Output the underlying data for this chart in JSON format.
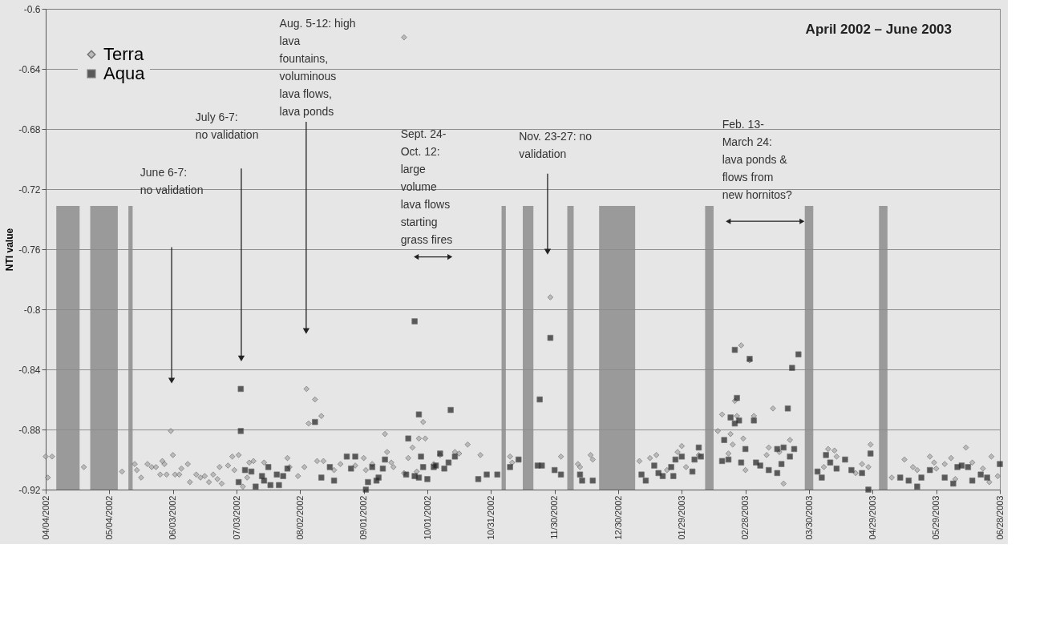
{
  "chart_data": {
    "type": "scatter",
    "title": "April 2002 – June 2003",
    "ylabel": "NTI value",
    "xlim": [
      "2002-04-04",
      "2003-06-28"
    ],
    "xticks": [
      {
        "value": "2002-04-04",
        "label": "04/04/2002"
      },
      {
        "value": "2002-05-04",
        "label": "05/04/2002"
      },
      {
        "value": "2002-06-03",
        "label": "06/03/2002"
      },
      {
        "value": "2002-07-03",
        "label": "07/03/2002"
      },
      {
        "value": "2002-08-02",
        "label": "08/02/2002"
      },
      {
        "value": "2002-09-01",
        "label": "09/01/2002"
      },
      {
        "value": "2002-10-01",
        "label": "10/01/2002"
      },
      {
        "value": "2002-10-31",
        "label": "10/31/2002"
      },
      {
        "value": "2002-11-30",
        "label": "11/30/2002"
      },
      {
        "value": "2002-12-30",
        "label": "12/30/2002"
      },
      {
        "value": "2003-01-29",
        "label": "01/29/2003"
      },
      {
        "value": "2003-02-28",
        "label": "02/28/2003"
      },
      {
        "value": "2003-03-30",
        "label": "03/30/2003"
      },
      {
        "value": "2003-04-29",
        "label": "04/29/2003"
      },
      {
        "value": "2003-05-29",
        "label": "05/29/2003"
      },
      {
        "value": "2003-06-28",
        "label": "06/28/2003"
      }
    ],
    "ylim": [
      -0.92,
      -0.6
    ],
    "yticks": [
      -0.92,
      -0.88,
      -0.84,
      -0.8,
      -0.76,
      -0.72,
      -0.68,
      -0.64,
      -0.6
    ],
    "grid": "y",
    "legend": "top left",
    "series": [
      {
        "name": "Terra",
        "color": "#a8a8a8",
        "marker": "diamond",
        "x": [
          "2002-04-04",
          "2002-04-07",
          "2002-04-05",
          "2002-04-22",
          "2002-05-10",
          "2002-05-16",
          "2002-05-17",
          "2002-05-19",
          "2002-05-22",
          "2002-05-24",
          "2002-05-26",
          "2002-05-28",
          "2002-05-29",
          "2002-05-30",
          "2002-05-31",
          "2002-06-02",
          "2002-06-03",
          "2002-06-04",
          "2002-06-06",
          "2002-06-07",
          "2002-06-10",
          "2002-06-11",
          "2002-06-14",
          "2002-06-16",
          "2002-06-18",
          "2002-06-20",
          "2002-06-22",
          "2002-06-24",
          "2002-06-25",
          "2002-06-26",
          "2002-06-29",
          "2002-07-01",
          "2002-07-02",
          "2002-07-04",
          "2002-07-06",
          "2002-07-08",
          "2002-07-09",
          "2002-07-11",
          "2002-07-16",
          "2002-07-27",
          "2002-07-28",
          "2002-08-01",
          "2002-08-04",
          "2002-08-05",
          "2002-08-06",
          "2002-08-09",
          "2002-08-12",
          "2002-08-10",
          "2002-08-13",
          "2002-08-18",
          "2002-08-21",
          "2002-08-28",
          "2002-09-01",
          "2002-09-02",
          "2002-09-05",
          "2002-09-11",
          "2002-09-12",
          "2002-09-14",
          "2002-09-15",
          "2002-09-20",
          "2002-09-20",
          "2002-09-22",
          "2002-09-24",
          "2002-09-26",
          "2002-09-27",
          "2002-09-29",
          "2002-09-30",
          "2002-10-04",
          "2002-10-07",
          "2002-10-14",
          "2002-10-16",
          "2002-10-20",
          "2002-10-26",
          "2002-11-09",
          "2002-11-10",
          "2002-11-28",
          "2002-12-03",
          "2002-12-11",
          "2002-12-12",
          "2002-12-17",
          "2002-12-18",
          "2003-01-09",
          "2003-01-14",
          "2003-01-17",
          "2003-01-22",
          "2003-01-27",
          "2003-01-29",
          "2003-01-31",
          "2003-02-06",
          "2003-02-15",
          "2003-02-17",
          "2003-02-21",
          "2003-02-22",
          "2003-02-20",
          "2003-02-23",
          "2003-02-24",
          "2003-02-26",
          "2003-02-27",
          "2003-02-28",
          "2003-03-02",
          "2003-03-04",
          "2003-03-10",
          "2003-03-11",
          "2003-03-13",
          "2003-03-16",
          "2003-03-18",
          "2003-03-21",
          "2003-04-06",
          "2003-04-08",
          "2003-04-11",
          "2003-04-12",
          "2003-04-21",
          "2003-04-24",
          "2003-04-27",
          "2003-04-28",
          "2003-05-08",
          "2003-05-14",
          "2003-05-18",
          "2003-05-20",
          "2003-05-26",
          "2003-05-28",
          "2003-05-29",
          "2003-06-02",
          "2003-06-05",
          "2003-06-07",
          "2003-06-12",
          "2003-06-15",
          "2003-06-20",
          "2003-06-23",
          "2003-06-24",
          "2003-06-27"
        ],
        "values": [
          -0.898,
          -0.898,
          -0.912,
          -0.905,
          -0.908,
          -0.903,
          -0.907,
          -0.912,
          -0.903,
          -0.905,
          -0.905,
          -0.91,
          -0.901,
          -0.903,
          -0.91,
          -0.881,
          -0.897,
          -0.91,
          -0.91,
          -0.906,
          -0.903,
          -0.915,
          -0.91,
          -0.912,
          -0.911,
          -0.915,
          -0.91,
          -0.913,
          -0.905,
          -0.916,
          -0.904,
          -0.898,
          -0.907,
          -0.897,
          -0.918,
          -0.912,
          -0.902,
          -0.901,
          -0.902,
          -0.899,
          -0.905,
          -0.911,
          -0.905,
          -0.853,
          -0.876,
          -0.86,
          -0.871,
          -0.901,
          -0.901,
          -0.907,
          -0.903,
          -0.904,
          -0.899,
          -0.907,
          -0.903,
          -0.883,
          -0.895,
          -0.902,
          -0.905,
          -0.909,
          -0.619,
          -0.899,
          -0.892,
          -0.908,
          -0.886,
          -0.875,
          -0.886,
          -0.903,
          -0.897,
          -0.895,
          -0.896,
          -0.89,
          -0.897,
          -0.898,
          -0.902,
          -0.792,
          -0.898,
          -0.903,
          -0.905,
          -0.897,
          -0.9,
          -0.901,
          -0.899,
          -0.897,
          -0.907,
          -0.895,
          -0.891,
          -0.905,
          -0.897,
          -0.881,
          -0.87,
          -0.883,
          -0.89,
          -0.896,
          -0.861,
          -0.871,
          -0.824,
          -0.886,
          -0.907,
          -0.834,
          -0.871,
          -0.897,
          -0.892,
          -0.866,
          -0.895,
          -0.916,
          -0.887,
          -0.905,
          -0.893,
          -0.894,
          -0.898,
          -0.909,
          -0.903,
          -0.905,
          -0.89,
          -0.912,
          -0.9,
          -0.905,
          -0.907,
          -0.898,
          -0.902,
          -0.906,
          -0.903,
          -0.899,
          -0.913,
          -0.892,
          -0.902,
          -0.906,
          -0.915,
          -0.898,
          -0.911
        ]
      },
      {
        "name": "Aqua",
        "color": "#1e1e1e",
        "marker": "square",
        "x": [
          "2002-07-05",
          "2002-07-05",
          "2002-07-04",
          "2002-07-07",
          "2002-07-10",
          "2002-07-12",
          "2002-07-15",
          "2002-07-16",
          "2002-07-18",
          "2002-07-19",
          "2002-07-22",
          "2002-07-23",
          "2002-07-25",
          "2002-07-27",
          "2002-08-09",
          "2002-08-12",
          "2002-08-16",
          "2002-08-18",
          "2002-08-24",
          "2002-08-26",
          "2002-08-28",
          "2002-09-02",
          "2002-09-03",
          "2002-09-05",
          "2002-09-07",
          "2002-09-08",
          "2002-09-10",
          "2002-09-11",
          "2002-09-21",
          "2002-09-22",
          "2002-09-25",
          "2002-09-25",
          "2002-09-27",
          "2002-09-27",
          "2002-09-28",
          "2002-09-29",
          "2002-10-01",
          "2002-10-04",
          "2002-10-05",
          "2002-10-07",
          "2002-10-09",
          "2002-10-11",
          "2002-10-12",
          "2002-10-14",
          "2002-10-25",
          "2002-10-29",
          "2002-11-03",
          "2002-11-09",
          "2002-11-13",
          "2002-11-22",
          "2002-11-23",
          "2002-11-24",
          "2002-11-28",
          "2002-11-30",
          "2002-12-03",
          "2002-12-12",
          "2002-12-13",
          "2002-12-18",
          "2003-01-10",
          "2003-01-12",
          "2003-01-16",
          "2003-01-18",
          "2003-01-20",
          "2003-01-24",
          "2003-01-25",
          "2003-01-26",
          "2003-01-29",
          "2003-02-03",
          "2003-02-04",
          "2003-02-06",
          "2003-02-07",
          "2003-02-17",
          "2003-02-18",
          "2003-02-20",
          "2003-02-21",
          "2003-02-23",
          "2003-02-23",
          "2003-02-24",
          "2003-02-25",
          "2003-02-26",
          "2003-02-28",
          "2003-03-02",
          "2003-03-04",
          "2003-03-05",
          "2003-03-07",
          "2003-03-11",
          "2003-03-15",
          "2003-03-15",
          "2003-03-17",
          "2003-03-18",
          "2003-03-20",
          "2003-03-21",
          "2003-03-22",
          "2003-03-23",
          "2003-03-25",
          "2003-04-03",
          "2003-04-05",
          "2003-04-07",
          "2003-04-09",
          "2003-04-12",
          "2003-04-16",
          "2003-04-19",
          "2003-04-24",
          "2003-04-27",
          "2003-04-28",
          "2003-05-12",
          "2003-05-16",
          "2003-05-20",
          "2003-05-22",
          "2003-05-26",
          "2003-06-02",
          "2003-06-06",
          "2003-06-08",
          "2003-06-10",
          "2003-06-13",
          "2003-06-15",
          "2003-06-19",
          "2003-06-22",
          "2003-06-28"
        ],
        "values": [
          -0.853,
          -0.881,
          -0.915,
          -0.907,
          -0.908,
          -0.918,
          -0.911,
          -0.914,
          -0.905,
          -0.917,
          -0.91,
          -0.917,
          -0.911,
          -0.906,
          -0.875,
          -0.912,
          -0.905,
          -0.914,
          -0.898,
          -0.906,
          -0.898,
          -0.92,
          -0.915,
          -0.905,
          -0.914,
          -0.912,
          -0.906,
          -0.9,
          -0.91,
          -0.886,
          -0.808,
          -0.911,
          -0.87,
          -0.912,
          -0.898,
          -0.905,
          -0.913,
          -0.905,
          -0.904,
          -0.896,
          -0.906,
          -0.902,
          -0.867,
          -0.898,
          -0.913,
          -0.91,
          -0.91,
          -0.905,
          -0.9,
          -0.904,
          -0.86,
          -0.904,
          -0.819,
          -0.907,
          -0.91,
          -0.91,
          -0.914,
          -0.914,
          -0.91,
          -0.914,
          -0.904,
          -0.909,
          -0.911,
          -0.905,
          -0.911,
          -0.9,
          -0.898,
          -0.908,
          -0.9,
          -0.892,
          -0.898,
          -0.901,
          -0.887,
          -0.9,
          -0.872,
          -0.876,
          -0.827,
          -0.859,
          -0.874,
          -0.902,
          -0.893,
          -0.833,
          -0.874,
          -0.902,
          -0.904,
          -0.907,
          -0.893,
          -0.909,
          -0.903,
          -0.892,
          -0.866,
          -0.898,
          -0.839,
          -0.893,
          -0.83,
          -0.908,
          -0.912,
          -0.897,
          -0.902,
          -0.906,
          -0.9,
          -0.907,
          -0.909,
          -0.92,
          -0.896,
          -0.912,
          -0.914,
          -0.918,
          -0.912,
          -0.907,
          -0.912,
          -0.916,
          -0.905,
          -0.904,
          -0.905,
          -0.914,
          -0.91,
          -0.912,
          -0.903
        ]
      }
    ],
    "bands": [
      {
        "axis": "x",
        "from": "2002-04-09",
        "to": "2002-04-20",
        "color": "#8c8c8c"
      },
      {
        "axis": "x",
        "from": "2002-04-25",
        "to": "2002-05-08",
        "color": "#8c8c8c"
      },
      {
        "axis": "x",
        "from": "2002-05-13",
        "to": "2002-05-15",
        "color": "#8c8c8c"
      },
      {
        "axis": "x",
        "from": "2002-11-05",
        "to": "2002-11-07",
        "color": "#8c8c8c"
      },
      {
        "axis": "x",
        "from": "2002-11-15",
        "to": "2002-11-20",
        "color": "#8c8c8c"
      },
      {
        "axis": "x",
        "from": "2002-12-06",
        "to": "2002-12-09",
        "color": "#8c8c8c"
      },
      {
        "axis": "x",
        "from": "2002-12-21",
        "to": "2003-01-07",
        "color": "#8c8c8c"
      },
      {
        "axis": "x",
        "from": "2003-02-09",
        "to": "2003-02-13",
        "color": "#8c8c8c"
      },
      {
        "axis": "x",
        "from": "2003-03-28",
        "to": "2003-04-01",
        "color": "#8c8c8c"
      },
      {
        "axis": "x",
        "from": "2003-05-02",
        "to": "2003-05-06",
        "color": "#8c8c8c"
      }
    ],
    "annotations": [
      "June 6-7:\nno validation",
      "July 6-7:\nno validation",
      "Aug. 5-12: high\nlava\nfountains,\nvoluminous\nlava flows,\nlava ponds",
      "Sept. 24-\nOct. 12:\nlarge\nvolume\nlava flows\nstarting\ngrass fires",
      "Nov. 23-27: no\nvalidation",
      "Feb. 13-\nMarch 24:\nlava ponds &\nflows from\nnew hornitos?"
    ]
  }
}
